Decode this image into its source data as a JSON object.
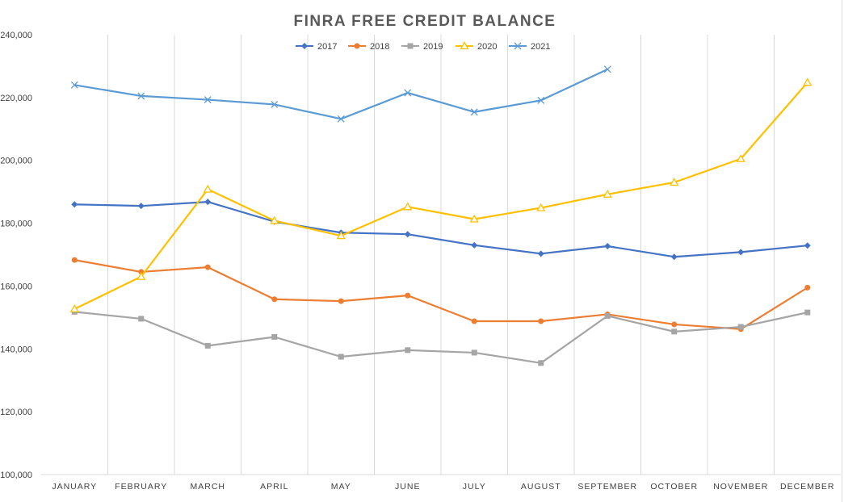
{
  "chart_data": {
    "type": "line",
    "title": "FINRA FREE CREDIT BALANCE",
    "xlabel": "",
    "ylabel": "",
    "categories": [
      "JANUARY",
      "FEBRUARY",
      "MARCH",
      "APRIL",
      "MAY",
      "JUNE",
      "JULY",
      "AUGUST",
      "SEPTEMBER",
      "OCTOBER",
      "NOVEMBER",
      "DECEMBER"
    ],
    "ylim": [
      100000,
      240000
    ],
    "yticks": [
      100000,
      120000,
      140000,
      160000,
      180000,
      200000,
      220000,
      240000
    ],
    "ytick_labels": [
      "100,000",
      "120,000",
      "140,000",
      "160,000",
      "180,000",
      "200,000",
      "220,000",
      "240,000"
    ],
    "grid": "vertical",
    "legend": "top-center",
    "series": [
      {
        "name": "2017",
        "color": "#4472C4",
        "marker": "diamond",
        "values": [
          186000,
          185500,
          186800,
          180500,
          177000,
          176500,
          173000,
          170300,
          172700,
          169300,
          170800,
          172900
        ]
      },
      {
        "name": "2018",
        "color": "#ED7D31",
        "marker": "circle",
        "values": [
          168300,
          164500,
          166000,
          155800,
          155200,
          157000,
          148800,
          148800,
          151000,
          147800,
          146300,
          159500
        ]
      },
      {
        "name": "2019",
        "color": "#A5A5A5",
        "marker": "square",
        "values": [
          151800,
          149600,
          141000,
          143800,
          137500,
          139600,
          138800,
          135500,
          150500,
          145500,
          147000,
          151600
        ]
      },
      {
        "name": "2020",
        "color": "#FFC000",
        "marker": "triangle",
        "values": [
          152700,
          163000,
          190800,
          180800,
          176000,
          185200,
          181300,
          184900,
          189200,
          193000,
          200500,
          224800
        ]
      },
      {
        "name": "2021",
        "color": "#5B9BD5",
        "marker": "x",
        "values": [
          224000,
          220500,
          219300,
          217800,
          213200,
          221500,
          215400,
          219100,
          229000,
          null,
          null,
          null
        ]
      }
    ]
  }
}
